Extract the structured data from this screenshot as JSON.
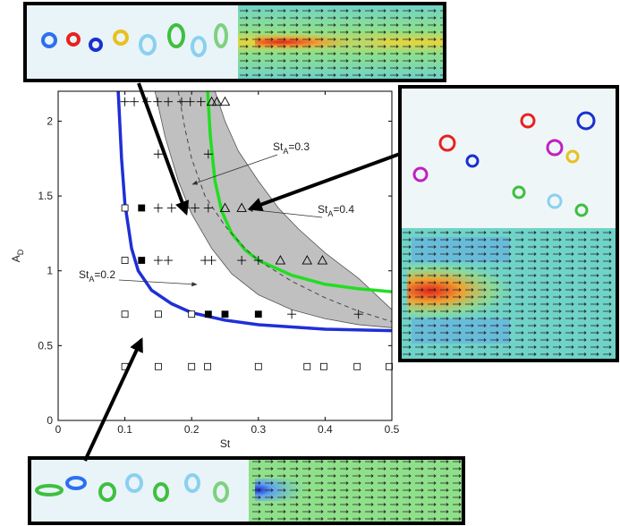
{
  "chart_data": {
    "type": "scatter",
    "xlabel": "St",
    "ylabel": {
      "text": "A",
      "sub": "D"
    },
    "xlim": [
      0,
      0.5
    ],
    "ylim": [
      0,
      2.2
    ],
    "xticks": [
      0,
      0.1,
      0.2,
      0.3,
      0.4,
      0.5
    ],
    "yticks": [
      0,
      0.5,
      1,
      1.5,
      2
    ],
    "series": [
      {
        "marker": "square-open",
        "color": "#000000",
        "x": [
          0.1,
          0.15,
          0.2,
          0.224,
          0.3,
          0.373,
          0.398,
          0.448,
          0.496,
          0.1,
          0.15,
          0.2,
          0.1,
          0.1
        ],
        "values": [
          0.36,
          0.36,
          0.36,
          0.36,
          0.36,
          0.36,
          0.36,
          0.36,
          0.36,
          0.71,
          0.71,
          0.71,
          1.07,
          1.42
        ]
      },
      {
        "marker": "square-filled",
        "color": "#000000",
        "x": [
          0.225,
          0.25,
          0.3,
          0.125,
          0.125
        ],
        "values": [
          0.71,
          0.71,
          0.71,
          1.07,
          1.42
        ]
      },
      {
        "marker": "plus",
        "color": "#000000",
        "x": [
          0.35,
          0.45,
          0.15,
          0.165,
          0.22,
          0.23,
          0.275,
          0.3,
          0.15,
          0.17,
          0.19,
          0.205,
          0.225,
          0.15,
          0.225,
          0.1,
          0.114,
          0.133,
          0.149,
          0.165,
          0.185,
          0.198,
          0.214
        ],
        "values": [
          0.71,
          0.71,
          1.07,
          1.07,
          1.07,
          1.07,
          1.07,
          1.07,
          1.42,
          1.42,
          1.42,
          1.42,
          1.42,
          1.78,
          1.78,
          2.13,
          2.13,
          2.13,
          2.13,
          2.13,
          2.13,
          2.13,
          2.13
        ]
      },
      {
        "marker": "triangle-open",
        "color": "#000000",
        "x": [
          0.333,
          0.373,
          0.396,
          0.25,
          0.275,
          0.23,
          0.238,
          0.25
        ],
        "values": [
          1.07,
          1.07,
          1.07,
          1.42,
          1.42,
          2.13,
          2.13,
          2.13
        ]
      }
    ],
    "band": {
      "color": "#c0c0c0",
      "lower": {
        "x": [
          0.145,
          0.16,
          0.18,
          0.2,
          0.23,
          0.26,
          0.3,
          0.35,
          0.4,
          0.45,
          0.5
        ],
        "values": [
          2.2,
          1.9,
          1.6,
          1.38,
          1.15,
          0.98,
          0.84,
          0.74,
          0.68,
          0.64,
          0.62
        ]
      },
      "upper": {
        "x": [
          0.235,
          0.25,
          0.27,
          0.3,
          0.33,
          0.36,
          0.4,
          0.45,
          0.5
        ],
        "values": [
          2.2,
          2.0,
          1.8,
          1.6,
          1.42,
          1.28,
          1.12,
          0.95,
          0.74
        ]
      }
    },
    "curves": [
      {
        "color": "#1f2fd6",
        "dash": false,
        "x": [
          0.09,
          0.095,
          0.1,
          0.11,
          0.12,
          0.14,
          0.17,
          0.2,
          0.25,
          0.3,
          0.4,
          0.5
        ],
        "values": [
          2.2,
          1.75,
          1.45,
          1.15,
          1.0,
          0.87,
          0.78,
          0.72,
          0.67,
          0.64,
          0.61,
          0.6
        ]
      },
      {
        "color": "#22dd22",
        "dash": false,
        "x": [
          0.224,
          0.228,
          0.235,
          0.245,
          0.26,
          0.28,
          0.3,
          0.35,
          0.4,
          0.45,
          0.5
        ],
        "values": [
          2.2,
          1.9,
          1.6,
          1.4,
          1.25,
          1.14,
          1.07,
          0.97,
          0.91,
          0.88,
          0.86
        ]
      },
      {
        "color": "#444444",
        "dash": true,
        "x": [
          0.18,
          0.19,
          0.2,
          0.22,
          0.25,
          0.28,
          0.3,
          0.35,
          0.4,
          0.45,
          0.5
        ],
        "values": [
          2.2,
          1.95,
          1.75,
          1.5,
          1.3,
          1.15,
          1.07,
          0.93,
          0.82,
          0.73,
          0.66
        ]
      }
    ],
    "annotations": [
      {
        "text": "St",
        "sub": "A",
        "suffix": "=0.3"
      },
      {
        "text": "St",
        "sub": "A",
        "suffix": "=0.4"
      },
      {
        "text": "St",
        "sub": "A",
        "suffix": "=0.2"
      }
    ]
  }
}
